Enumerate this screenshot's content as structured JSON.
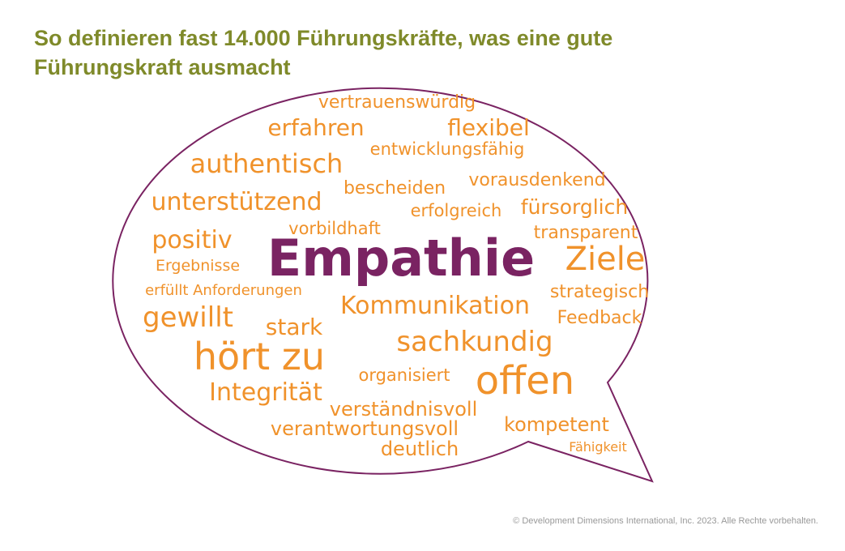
{
  "title": "So definieren fast 14.000 Führungskräfte, was eine gute Führungskraft ausmacht",
  "words": [
    "vertrauenswürdig",
    "erfahren",
    "flexibel",
    "entwicklungsfähig",
    "authentisch",
    "vorausdenkend",
    "bescheiden",
    "unterstützend",
    "fürsorglich",
    "erfolgreich",
    "vorbildhaft",
    "transparent",
    "positiv",
    "Empathie",
    "Ziele",
    "Ergebnisse",
    "erfüllt Anforderungen",
    "strategisch",
    "Kommunikation",
    "Feedback",
    "gewillt",
    "stark",
    "hört zu",
    "sachkundig",
    "organisiert",
    "offen",
    "Integrität",
    "verständnisvoll",
    "verantwortungsvoll",
    "kompetent",
    "deutlich",
    "Fähigkeit"
  ],
  "copyright": "© Development Dimensions International, Inc. 2023. Alle Rechte vorbehalten."
}
